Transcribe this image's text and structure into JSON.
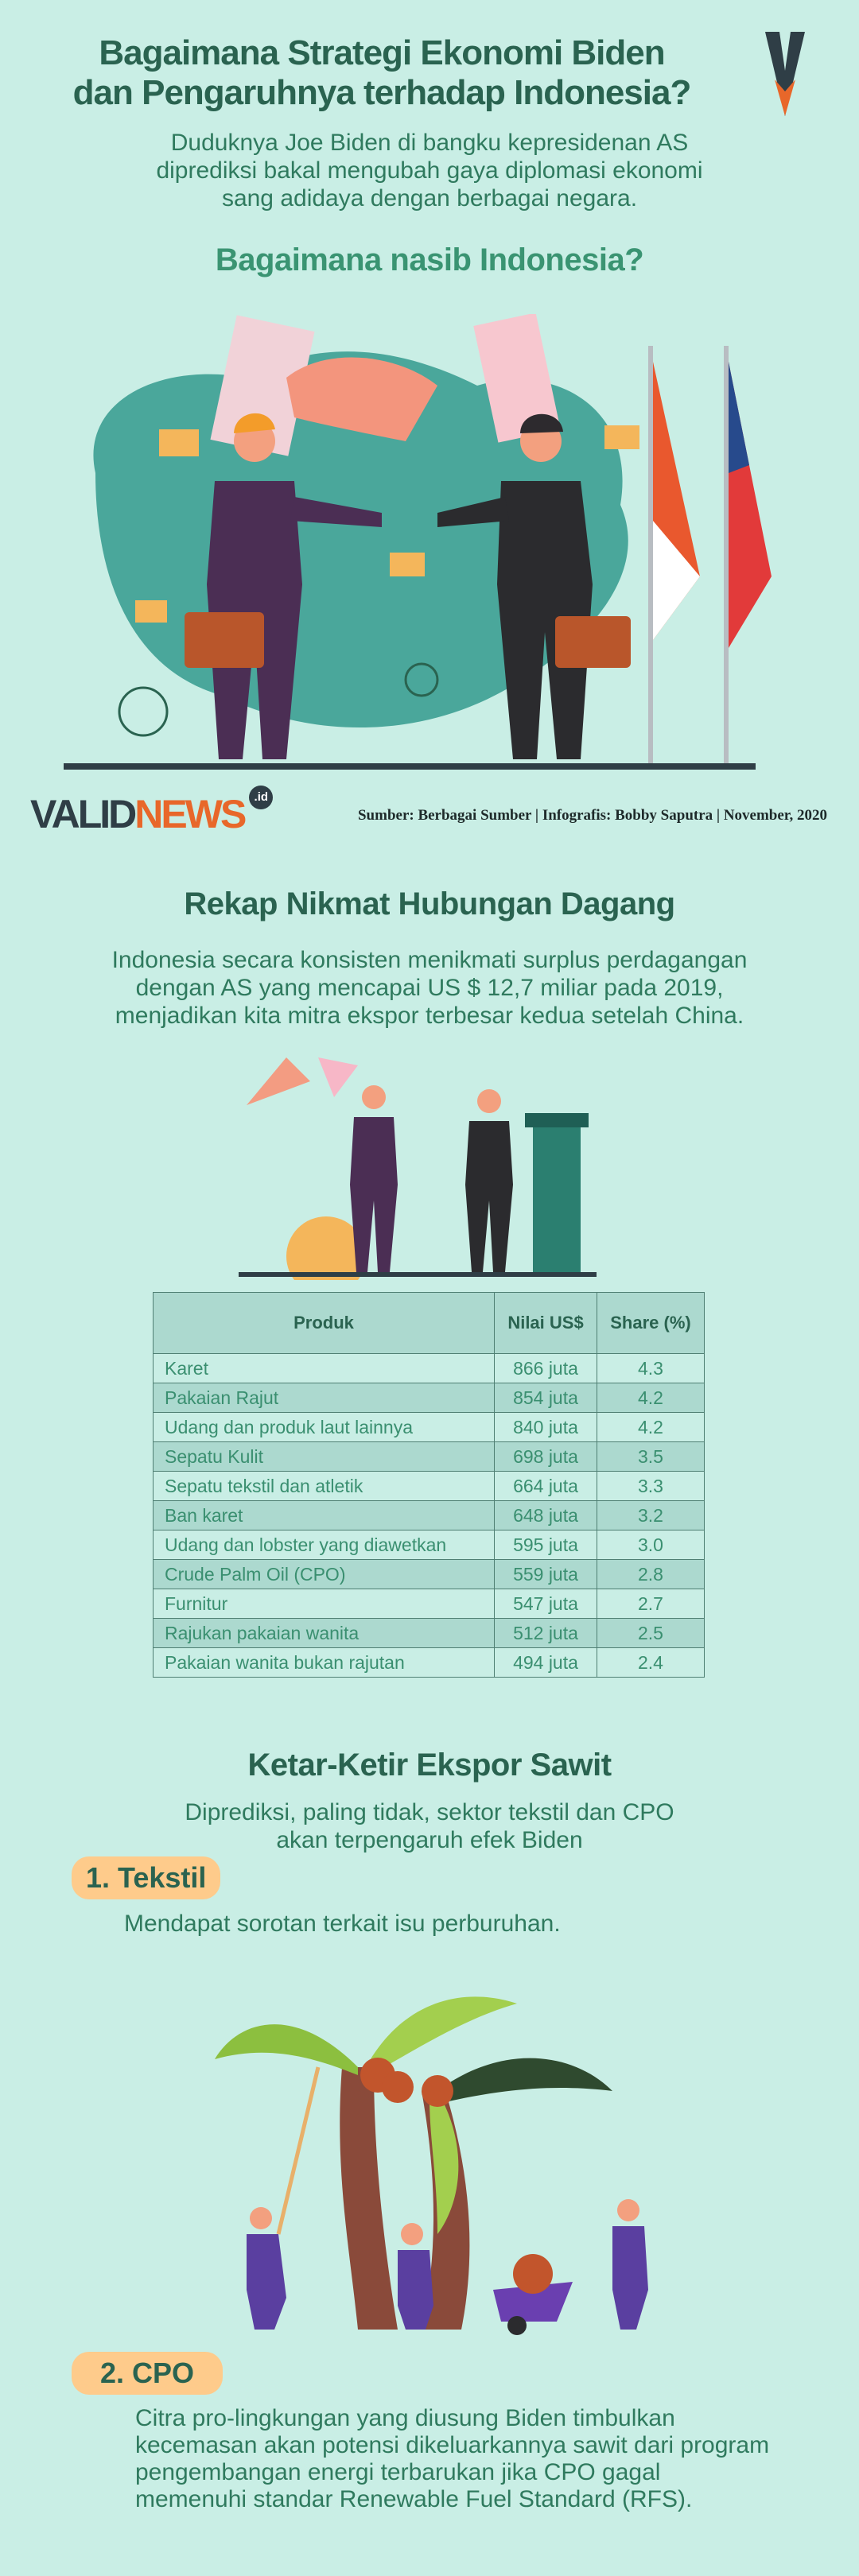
{
  "header": {
    "title_line1": "Bagaimana Strategi Ekonomi Biden",
    "title_line2": "dan Pengaruhnya terhadap Indonesia?",
    "intro": [
      "Duduknya Joe Biden di bangku kepresidenan AS",
      "diprediksi bakal mengubah gaya diplomasi ekonomi",
      "sang adidaya dengan berbagai negara."
    ],
    "question": "Bagaimana nasib Indonesia?"
  },
  "brand": {
    "logo_text_a": "VALID",
    "logo_text_b": "NEWS",
    "logo_suffix": ".id",
    "dark": "#2f3e46",
    "orange": "#e8672a"
  },
  "credit": "Sumber: Berbagai Sumber | Infografis: Bobby Saputra | November, 2020",
  "trade": {
    "heading": "Rekap Nikmat Hubungan Dagang",
    "intro": [
      "Indonesia secara konsisten menikmati surplus perdagangan",
      "dengan AS yang mencapai US $ 12,7 miliar pada 2019,",
      "menjadikan kita mitra ekspor terbesar kedua setelah China."
    ],
    "table": {
      "headers": [
        "Produk",
        "Nilai US$",
        "Share (%)"
      ],
      "rows": [
        [
          "Karet",
          "866 juta",
          "4.3"
        ],
        [
          "Pakaian Rajut",
          "854 juta",
          "4.2"
        ],
        [
          "Udang dan produk laut lainnya",
          "840 juta",
          "4.2"
        ],
        [
          "Sepatu Kulit",
          "698 juta",
          "3.5"
        ],
        [
          "Sepatu tekstil dan atletik",
          "664 juta",
          "3.3"
        ],
        [
          "Ban karet",
          "648 juta",
          "3.2"
        ],
        [
          "Udang dan lobster yang diawetkan",
          "595 juta",
          "3.0"
        ],
        [
          "Crude Palm Oil (CPO)",
          "559 juta",
          "2.8"
        ],
        [
          "Furnitur",
          "547 juta",
          "2.7"
        ],
        [
          "Rajukan pakaian wanita",
          "512 juta",
          "2.5"
        ],
        [
          "Pakaian wanita bukan rajutan",
          "494 juta",
          "2.4"
        ]
      ]
    }
  },
  "palm": {
    "heading": "Ketar-Ketir Ekspor Sawit",
    "intro": [
      "Diprediksi, paling tidak, sektor tekstil dan CPO",
      "akan terpengaruh efek Biden"
    ],
    "items": [
      {
        "label": "1. Tekstil",
        "text": [
          "Mendapat sorotan terkait isu perburuhan."
        ]
      },
      {
        "label": "2. CPO",
        "text": [
          "Citra pro-lingkungan yang diusung Biden timbulkan",
          "kecemasan akan potensi dikeluarkannya sawit dari program",
          "pengembangan energi terbarukan jika CPO gagal",
          "memenuhi standar Renewable Fuel Standard (RFS)."
        ]
      }
    ]
  },
  "colors": {
    "background": "#c9eee5",
    "heading": "#2a6350",
    "accent": "#3a9472",
    "pill": "#fecb8b",
    "table_alt": "#acd9cf"
  }
}
